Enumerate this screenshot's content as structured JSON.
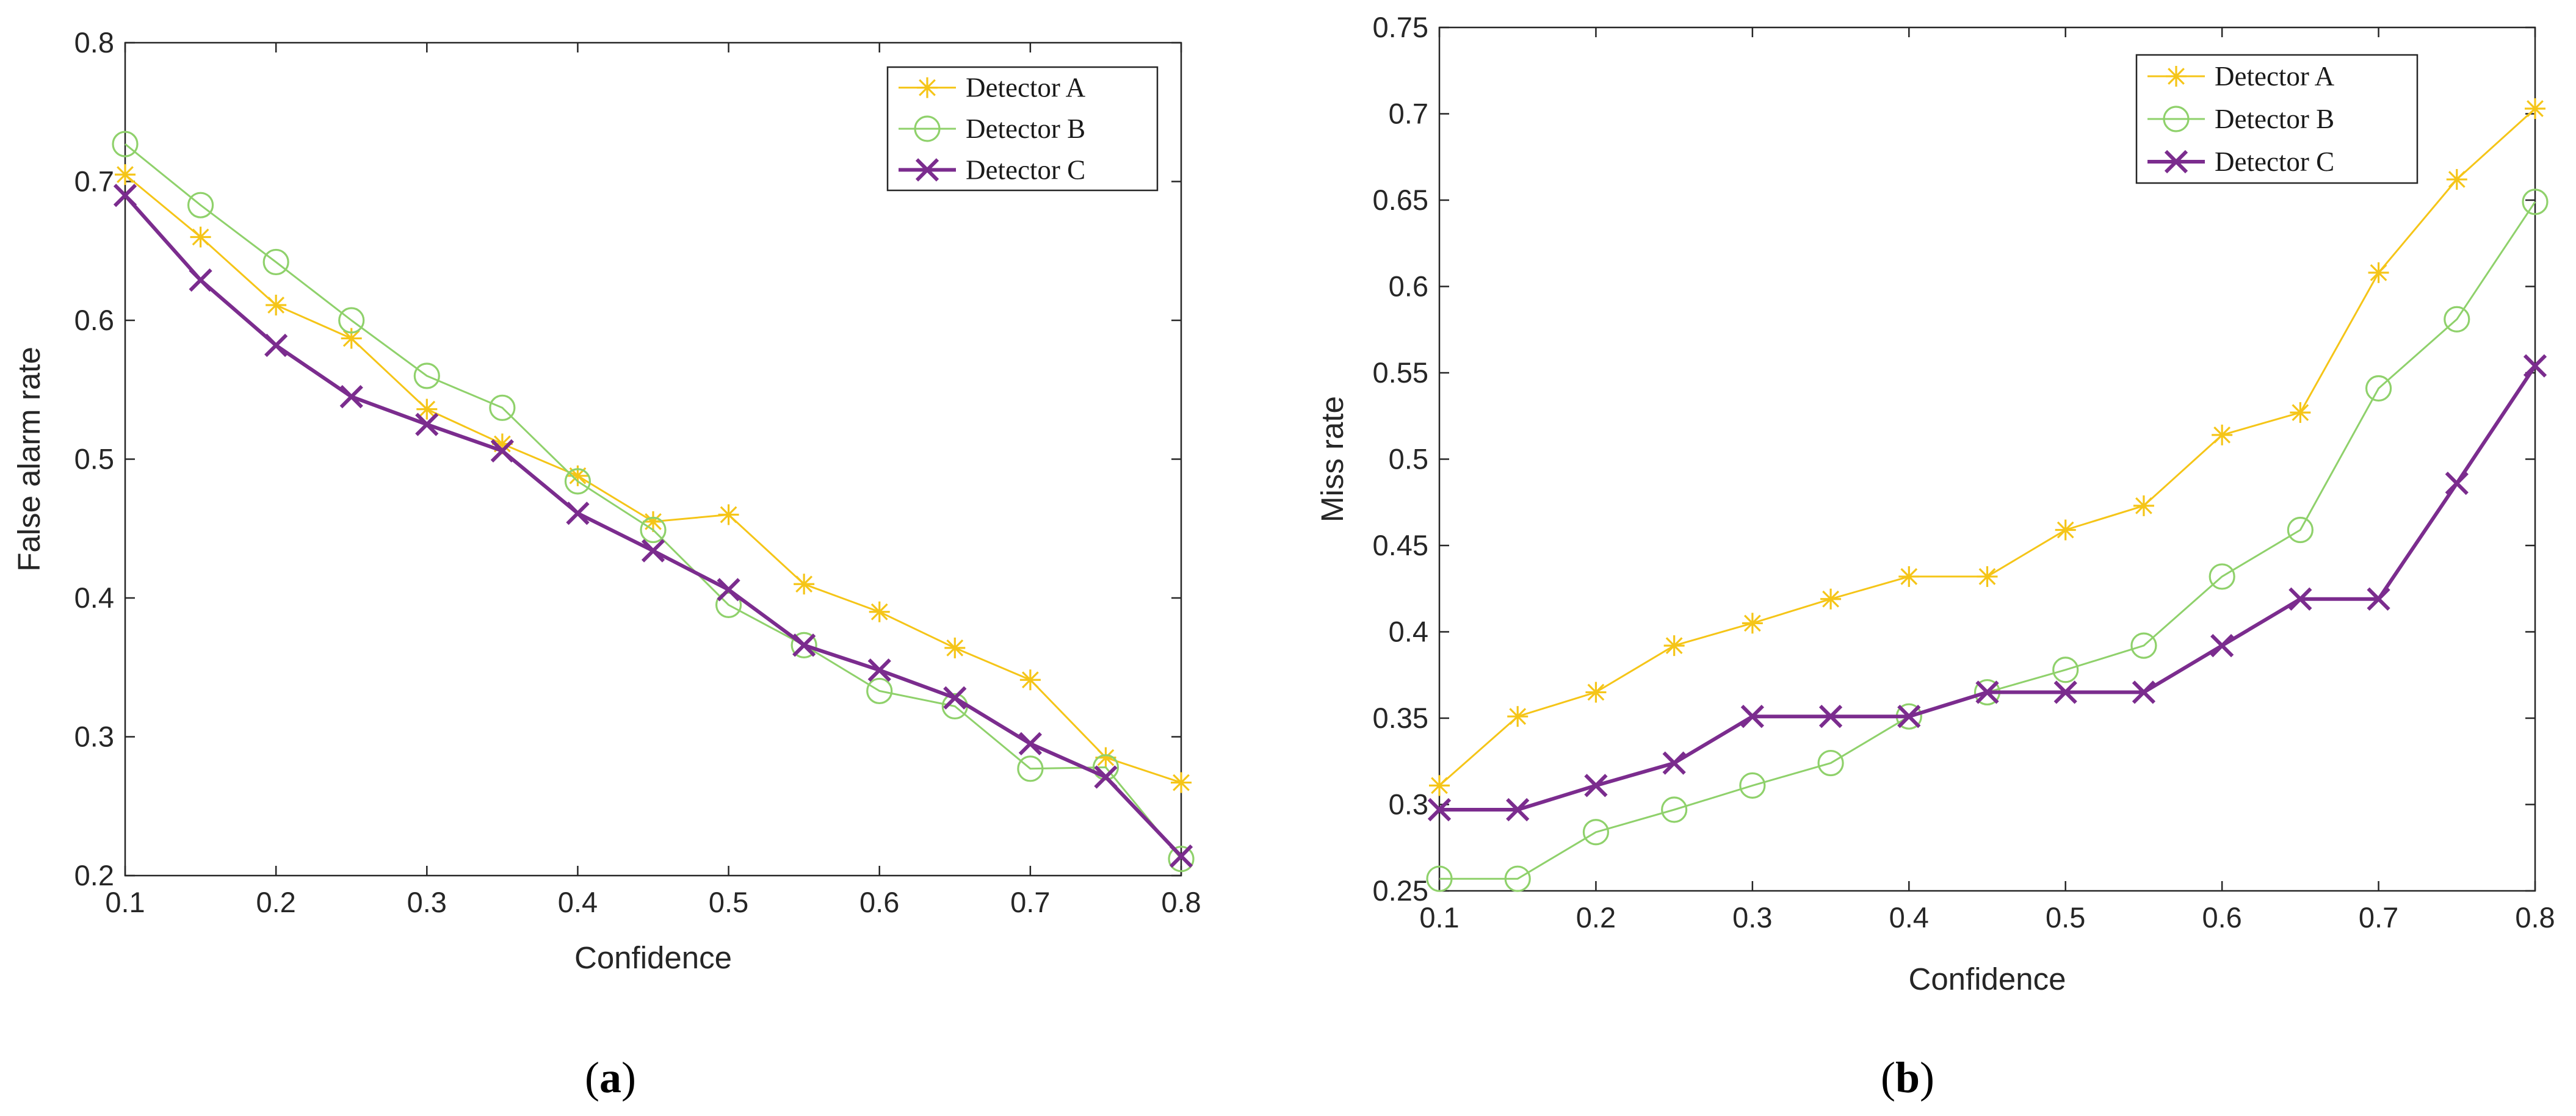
{
  "chart_data": [
    {
      "type": "line",
      "panel": "a",
      "caption": {
        "open": "(",
        "label": "a",
        "close": ")"
      },
      "xlabel": "Confidence",
      "ylabel": "False alarm rate",
      "xlim": [
        0.1,
        0.8
      ],
      "ylim": [
        0.2,
        0.8
      ],
      "xticks": [
        "0.1",
        "0.2",
        "0.3",
        "0.4",
        "0.5",
        "0.6",
        "0.7",
        "0.8"
      ],
      "yticks": [
        "0.2",
        "0.3",
        "0.4",
        "0.5",
        "0.6",
        "0.7",
        "0.8"
      ],
      "legend_position": "top-right",
      "x": [
        0.1,
        0.15,
        0.2,
        0.25,
        0.3,
        0.35,
        0.4,
        0.45,
        0.5,
        0.55,
        0.6,
        0.65,
        0.7,
        0.75,
        0.8
      ],
      "series": [
        {
          "name": "Detector A",
          "marker": "star",
          "color": "#f5c518",
          "width": "thin",
          "values": [
            0.705,
            0.66,
            0.611,
            0.587,
            0.536,
            0.511,
            0.488,
            0.455,
            0.46,
            0.41,
            0.39,
            0.364,
            0.341,
            0.285,
            0.267
          ]
        },
        {
          "name": "Detector B",
          "marker": "circle",
          "color": "#8fd16b",
          "width": "thin",
          "values": [
            0.727,
            0.683,
            0.642,
            0.6,
            0.56,
            0.537,
            0.484,
            0.449,
            0.395,
            0.366,
            0.333,
            0.322,
            0.277,
            0.278,
            0.212
          ]
        },
        {
          "name": "Detector C",
          "marker": "x",
          "color": "#7b2c8e",
          "width": "thick",
          "values": [
            0.69,
            0.629,
            0.582,
            0.545,
            0.525,
            0.506,
            0.461,
            0.434,
            0.406,
            0.366,
            0.348,
            0.328,
            0.295,
            0.271,
            0.214
          ]
        }
      ]
    },
    {
      "type": "line",
      "panel": "b",
      "caption": {
        "open": "(",
        "label": "b",
        "close": ")"
      },
      "xlabel": "Confidence",
      "ylabel": "Miss rate",
      "xlim": [
        0.1,
        0.8
      ],
      "ylim": [
        0.25,
        0.75
      ],
      "xticks": [
        "0.1",
        "0.2",
        "0.3",
        "0.4",
        "0.5",
        "0.6",
        "0.7",
        "0.8"
      ],
      "yticks": [
        "0.25",
        "0.3",
        "0.35",
        "0.4",
        "0.45",
        "0.5",
        "0.55",
        "0.6",
        "0.65",
        "0.7",
        "0.75"
      ],
      "legend_position": "top-right",
      "x": [
        0.1,
        0.15,
        0.2,
        0.25,
        0.3,
        0.35,
        0.4,
        0.45,
        0.5,
        0.55,
        0.6,
        0.65,
        0.7,
        0.75,
        0.8
      ],
      "series": [
        {
          "name": "Detector A",
          "marker": "star",
          "color": "#f5c518",
          "width": "thin",
          "values": [
            0.311,
            0.351,
            0.365,
            0.392,
            0.405,
            0.419,
            0.432,
            0.432,
            0.459,
            0.473,
            0.514,
            0.527,
            0.608,
            0.662,
            0.703
          ]
        },
        {
          "name": "Detector B",
          "marker": "circle",
          "color": "#8fd16b",
          "width": "thin",
          "values": [
            0.257,
            0.257,
            0.284,
            0.297,
            0.311,
            0.324,
            0.351,
            0.365,
            0.378,
            0.392,
            0.432,
            0.459,
            0.541,
            0.581,
            0.649
          ]
        },
        {
          "name": "Detector C",
          "marker": "x",
          "color": "#7b2c8e",
          "width": "thick",
          "values": [
            0.297,
            0.297,
            0.311,
            0.324,
            0.351,
            0.351,
            0.351,
            0.365,
            0.365,
            0.365,
            0.392,
            0.419,
            0.419,
            0.486,
            0.554
          ]
        }
      ]
    }
  ]
}
